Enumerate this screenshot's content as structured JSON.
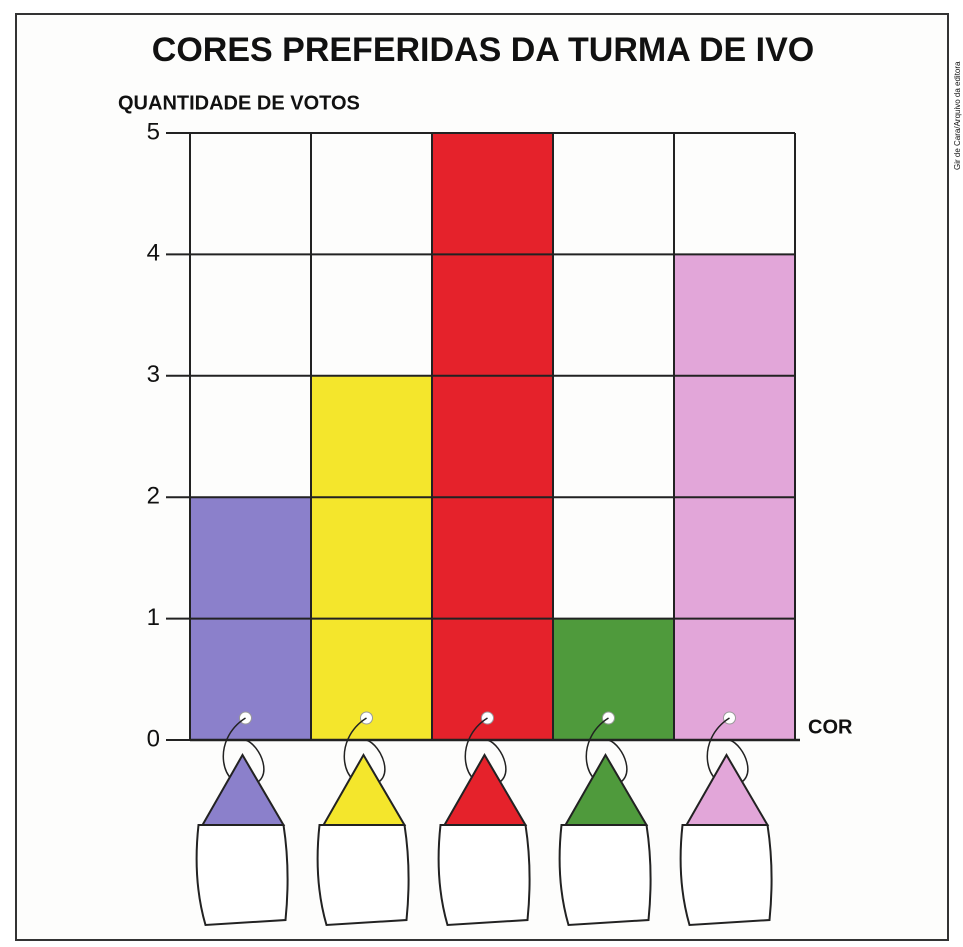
{
  "chart_data": {
    "type": "bar",
    "title": "CORES PREFERIDAS DA TURMA DE IVO",
    "y_label": "QUANTIDADE DE VOTOS",
    "x_label": "COR",
    "credit": "Gir de Cara/Arquivo da editora",
    "categories": [
      null,
      null,
      null,
      null,
      null
    ],
    "values": [
      2,
      3,
      5,
      1,
      4
    ],
    "colors": [
      "#8b80cb",
      "#f4e62c",
      "#e5222b",
      "#4f9a3c",
      "#e2a6d9"
    ],
    "ylim": [
      0,
      5
    ],
    "yticks": [
      0,
      1,
      2,
      3,
      4,
      5
    ],
    "grid": true
  }
}
